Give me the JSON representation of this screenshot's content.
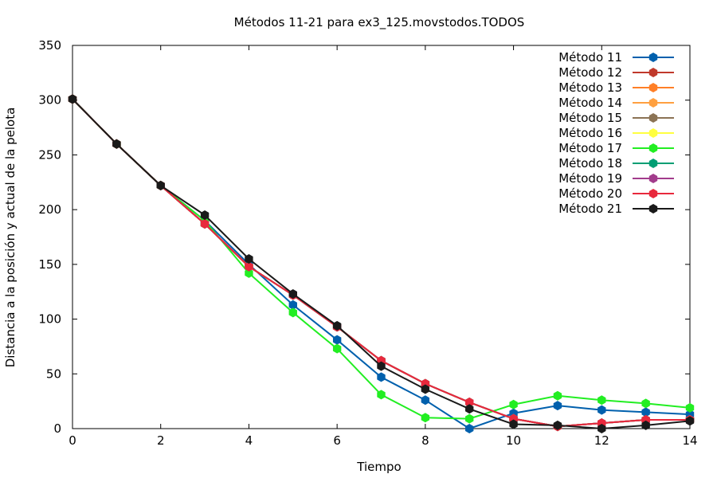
{
  "chart_data": {
    "type": "line",
    "title": "Métodos 11-21 para ex3_125.movstodos.TODOS",
    "xlabel": "Tiempo",
    "ylabel": "Distancia a la posición y actual de la pelota",
    "xlim": [
      0,
      14
    ],
    "ylim": [
      0,
      350
    ],
    "xticks": [
      0,
      2,
      4,
      6,
      8,
      10,
      12,
      14
    ],
    "yticks": [
      0,
      50,
      100,
      150,
      200,
      250,
      300,
      350
    ],
    "grid": false,
    "legend": "top-right",
    "x": [
      0,
      1,
      2,
      3,
      4,
      5,
      6,
      7,
      8,
      9,
      10,
      11,
      12,
      13,
      14
    ],
    "series": [
      {
        "name": "Método 11",
        "color": "#0060ad",
        "values": [
          301,
          260,
          222,
          190,
          150,
          113,
          81,
          47,
          26,
          0,
          14,
          21,
          17,
          15,
          13
        ]
      },
      {
        "name": "Método 12",
        "color": "#c0392b",
        "values": [
          301,
          260,
          222,
          187,
          148,
          122,
          93,
          62,
          41,
          24,
          9,
          2,
          5,
          8,
          8
        ]
      },
      {
        "name": "Método 13",
        "color": "#ff7f27",
        "values": [
          301,
          260,
          222,
          187,
          148,
          122,
          93,
          62,
          41,
          24,
          9,
          2,
          5,
          8,
          8
        ]
      },
      {
        "name": "Método 14",
        "color": "#ffa040",
        "values": [
          301,
          260,
          222,
          187,
          148,
          122,
          93,
          62,
          41,
          24,
          9,
          2,
          5,
          8,
          8
        ]
      },
      {
        "name": "Método 15",
        "color": "#8b7355",
        "values": [
          301,
          260,
          222,
          187,
          148,
          122,
          93,
          62,
          41,
          24,
          9,
          2,
          5,
          8,
          8
        ]
      },
      {
        "name": "Método 16",
        "color": "#ffff40",
        "values": [
          301,
          260,
          222,
          187,
          148,
          122,
          93,
          62,
          41,
          24,
          9,
          2,
          5,
          8,
          8
        ]
      },
      {
        "name": "Método 17",
        "color": "#22ee22",
        "values": [
          301,
          260,
          222,
          190,
          142,
          106,
          73,
          31,
          10,
          9,
          22,
          30,
          26,
          23,
          19
        ]
      },
      {
        "name": "Método 18",
        "color": "#009e73",
        "values": [
          301,
          260,
          222,
          187,
          148,
          122,
          93,
          62,
          41,
          24,
          9,
          2,
          5,
          8,
          8
        ]
      },
      {
        "name": "Método 19",
        "color": "#a23c8c",
        "values": [
          301,
          260,
          222,
          187,
          148,
          122,
          93,
          62,
          41,
          24,
          9,
          2,
          5,
          8,
          8
        ]
      },
      {
        "name": "Método 20",
        "color": "#e8283c",
        "values": [
          301,
          260,
          222,
          187,
          148,
          122,
          93,
          62,
          41,
          24,
          9,
          2,
          5,
          8,
          8
        ]
      },
      {
        "name": "Método 21",
        "color": "#1a1a1a",
        "values": [
          301,
          260,
          222,
          195,
          155,
          123,
          94,
          57,
          36,
          18,
          4,
          3,
          0,
          3,
          7
        ]
      }
    ]
  }
}
